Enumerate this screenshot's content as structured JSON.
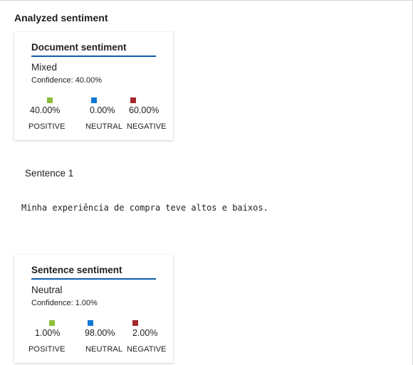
{
  "section_title": "Analyzed sentiment",
  "colors": {
    "positive": "#8cbd3a",
    "neutral": "#0f78d4",
    "negative": "#a4262c",
    "title_underline": "#0f5da8"
  },
  "document_card": {
    "title": "Document sentiment",
    "label": "Mixed",
    "confidence": "Confidence: 40.00%",
    "positive": {
      "value": "40.00%",
      "label": "POSITIVE"
    },
    "neutral": {
      "value": "0.00%",
      "label": "NEUTRAL"
    },
    "negative": {
      "value": "60.00%",
      "label": "NEGATIVE"
    }
  },
  "sentence": {
    "heading": "Sentence 1",
    "text": "Minha experiência de compra teve altos e baixos."
  },
  "sentence_card": {
    "title": "Sentence sentiment",
    "label": "Neutral",
    "confidence": "Confidence: 1.00%",
    "positive": {
      "value": "1.00%",
      "label": "POSITIVE"
    },
    "neutral": {
      "value": "98.00%",
      "label": "NEUTRAL"
    },
    "negative": {
      "value": "2.00%",
      "label": "NEGATIVE"
    }
  }
}
